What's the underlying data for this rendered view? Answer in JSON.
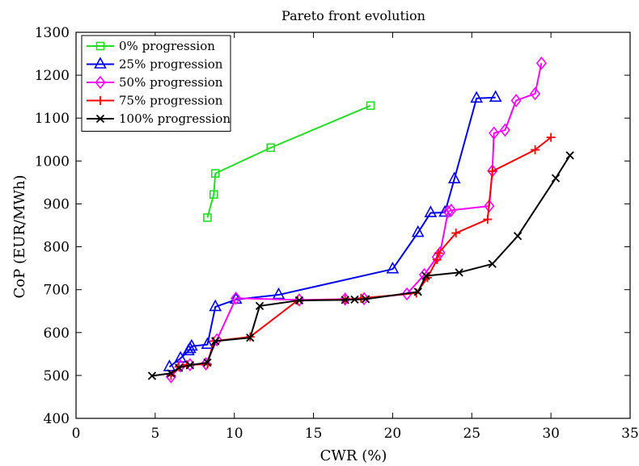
{
  "chart_data": {
    "type": "line",
    "title": "Pareto front evolution",
    "xlabel": "CWR (%)",
    "ylabel": "CoP (EUR/MWh)",
    "xlim": [
      0,
      35
    ],
    "ylim": [
      400,
      1300
    ],
    "xticks": [
      0,
      5,
      10,
      15,
      20,
      25,
      30,
      35
    ],
    "yticks": [
      400,
      500,
      600,
      700,
      800,
      900,
      1000,
      1100,
      1200,
      1300
    ],
    "grid": false,
    "legend_position": "top-left",
    "series": [
      {
        "name": "0% progression",
        "color": "#22dd22",
        "marker": "square",
        "points": [
          [
            8.3,
            868
          ],
          [
            8.7,
            922
          ],
          [
            8.8,
            971
          ],
          [
            12.3,
            1031
          ],
          [
            18.6,
            1129
          ]
        ]
      },
      {
        "name": "25% progression",
        "color": "#0000ee",
        "marker": "triangle",
        "points": [
          [
            5.9,
            520
          ],
          [
            6.6,
            540
          ],
          [
            7.1,
            557
          ],
          [
            7.2,
            562
          ],
          [
            7.3,
            568
          ],
          [
            8.3,
            572
          ],
          [
            8.8,
            660
          ],
          [
            10.1,
            677
          ],
          [
            12.8,
            688
          ],
          [
            20.0,
            748
          ],
          [
            21.6,
            833
          ],
          [
            22.4,
            879
          ],
          [
            23.3,
            880
          ],
          [
            23.9,
            958
          ],
          [
            25.3,
            1146
          ],
          [
            26.5,
            1148
          ]
        ]
      },
      {
        "name": "50% progression",
        "color": "#ff00ff",
        "marker": "diamond",
        "points": [
          [
            6.0,
            497
          ],
          [
            6.6,
            522
          ],
          [
            7.2,
            525
          ],
          [
            8.2,
            527
          ],
          [
            8.9,
            583
          ],
          [
            10.1,
            680
          ],
          [
            14.1,
            676
          ],
          [
            17.0,
            678
          ],
          [
            18.2,
            679
          ],
          [
            20.9,
            690
          ],
          [
            22.0,
            735
          ],
          [
            22.8,
            776
          ],
          [
            23.0,
            786
          ],
          [
            23.5,
            882
          ],
          [
            23.7,
            885
          ],
          [
            26.1,
            895
          ],
          [
            26.3,
            977
          ],
          [
            26.4,
            1065
          ],
          [
            27.1,
            1072
          ],
          [
            27.8,
            1141
          ],
          [
            29.0,
            1157
          ],
          [
            29.4,
            1228
          ]
        ]
      },
      {
        "name": "75% progression",
        "color": "#ff0000",
        "marker": "plus",
        "points": [
          [
            6.0,
            500
          ],
          [
            6.5,
            520
          ],
          [
            7.0,
            525
          ],
          [
            8.3,
            526
          ],
          [
            8.7,
            580
          ],
          [
            11.0,
            590
          ],
          [
            14.0,
            675
          ],
          [
            17.0,
            677
          ],
          [
            18.0,
            680
          ],
          [
            21.5,
            692
          ],
          [
            22.2,
            728
          ],
          [
            22.8,
            770
          ],
          [
            22.9,
            785
          ],
          [
            24.0,
            832
          ],
          [
            26.0,
            864
          ],
          [
            26.3,
            976
          ],
          [
            29.0,
            1026
          ],
          [
            30.0,
            1055
          ]
        ]
      },
      {
        "name": "100% progression",
        "color": "#000000",
        "marker": "x",
        "points": [
          [
            4.8,
            499
          ],
          [
            6.0,
            505
          ],
          [
            6.5,
            518
          ],
          [
            7.2,
            524
          ],
          [
            8.3,
            530
          ],
          [
            8.8,
            580
          ],
          [
            11.0,
            588
          ],
          [
            11.6,
            662
          ],
          [
            14.1,
            675
          ],
          [
            17.0,
            676
          ],
          [
            17.6,
            677
          ],
          [
            18.3,
            678
          ],
          [
            21.6,
            695
          ],
          [
            22.1,
            732
          ],
          [
            24.2,
            740
          ],
          [
            26.3,
            760
          ],
          [
            27.9,
            825
          ],
          [
            30.3,
            960
          ],
          [
            31.2,
            1013
          ]
        ]
      }
    ]
  }
}
